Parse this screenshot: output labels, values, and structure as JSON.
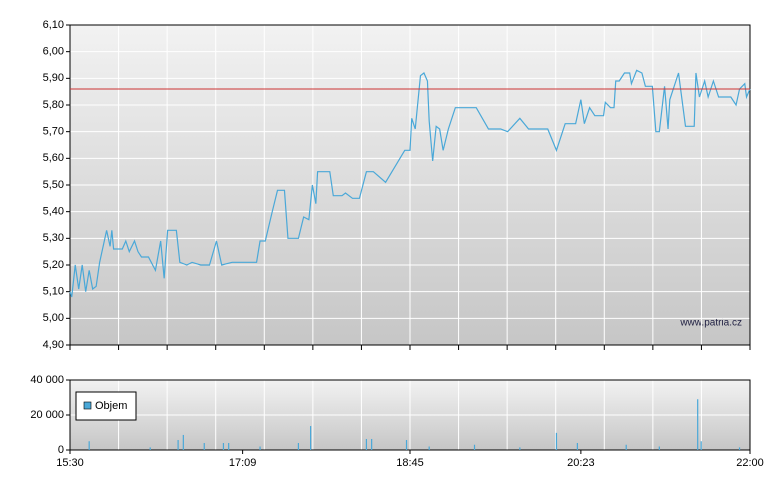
{
  "chart_data": [
    {
      "type": "line",
      "watermark": "www.patria.cz",
      "color": "#4aa8d8",
      "reference_line": 5.86,
      "reference_color": "#cc3333",
      "xlim": [
        "15:30",
        "22:00"
      ],
      "ylim": [
        4.9,
        6.1
      ],
      "yticks": [
        {
          "value": 4.9,
          "label": "4,90"
        },
        {
          "value": 5.0,
          "label": "5,00"
        },
        {
          "value": 5.1,
          "label": "5,10"
        },
        {
          "value": 5.2,
          "label": "5,20"
        },
        {
          "value": 5.3,
          "label": "5,30"
        },
        {
          "value": 5.4,
          "label": "5,40"
        },
        {
          "value": 5.5,
          "label": "5,50"
        },
        {
          "value": 5.6,
          "label": "5,60"
        },
        {
          "value": 5.7,
          "label": "5,70"
        },
        {
          "value": 5.8,
          "label": "5,80"
        },
        {
          "value": 5.9,
          "label": "5,90"
        },
        {
          "value": 6.0,
          "label": "6,00"
        },
        {
          "value": 6.1,
          "label": "6,10"
        }
      ],
      "x": [
        "15:30",
        "15:31",
        "15:33",
        "15:35",
        "15:37",
        "15:39",
        "15:41",
        "15:43",
        "15:45",
        "15:47",
        "15:50",
        "15:51",
        "15:53",
        "15:54",
        "15:55",
        "16:00",
        "16:02",
        "16:04",
        "16:07",
        "16:09",
        "16:11",
        "16:15",
        "16:19",
        "16:22",
        "16:24",
        "16:26",
        "16:31",
        "16:33",
        "16:37",
        "16:40",
        "16:45",
        "16:50",
        "16:54",
        "16:57",
        "17:03",
        "17:12",
        "17:17",
        "17:19",
        "17:22",
        "17:26",
        "17:29",
        "17:33",
        "17:35",
        "17:41",
        "17:44",
        "17:47",
        "17:49",
        "17:51",
        "17:52",
        "17:59",
        "18:01",
        "18:06",
        "18:08",
        "18:12",
        "18:16",
        "18:20",
        "18:24",
        "18:31",
        "18:42",
        "18:45",
        "18:46",
        "18:48",
        "18:51",
        "18:53",
        "18:55",
        "18:56",
        "18:58",
        "19:00",
        "19:02",
        "19:04",
        "19:07",
        "19:11",
        "19:23",
        "19:30",
        "19:37",
        "19:41",
        "19:48",
        "19:53",
        "20:04",
        "20:09",
        "20:14",
        "20:20",
        "20:23",
        "20:25",
        "20:28",
        "20:31",
        "20:36",
        "20:37",
        "20:40",
        "20:42",
        "20:43",
        "20:45",
        "20:48",
        "20:51",
        "20:52",
        "20:55",
        "20:58",
        "21:00",
        "21:04",
        "21:06",
        "21:08",
        "21:11",
        "21:13",
        "21:14",
        "21:19",
        "21:23",
        "21:28",
        "21:29",
        "21:31",
        "21:34",
        "21:36",
        "21:39",
        "21:42",
        "21:49",
        "21:52",
        "21:54",
        "21:57",
        "21:58",
        "22:00"
      ],
      "values": [
        5.1,
        5.08,
        5.2,
        5.11,
        5.2,
        5.1,
        5.18,
        5.11,
        5.12,
        5.21,
        5.3,
        5.33,
        5.27,
        5.33,
        5.26,
        5.26,
        5.29,
        5.25,
        5.29,
        5.25,
        5.23,
        5.23,
        5.18,
        5.29,
        5.15,
        5.33,
        5.33,
        5.21,
        5.2,
        5.21,
        5.2,
        5.2,
        5.29,
        5.2,
        5.21,
        5.21,
        5.21,
        5.29,
        5.29,
        5.4,
        5.48,
        5.48,
        5.3,
        5.3,
        5.38,
        5.37,
        5.5,
        5.43,
        5.55,
        5.55,
        5.46,
        5.46,
        5.47,
        5.45,
        5.45,
        5.55,
        5.55,
        5.51,
        5.63,
        5.63,
        5.75,
        5.71,
        5.91,
        5.92,
        5.89,
        5.74,
        5.59,
        5.72,
        5.71,
        5.63,
        5.71,
        5.79,
        5.79,
        5.71,
        5.71,
        5.7,
        5.75,
        5.71,
        5.71,
        5.63,
        5.73,
        5.73,
        5.82,
        5.73,
        5.79,
        5.76,
        5.76,
        5.81,
        5.79,
        5.79,
        5.89,
        5.89,
        5.92,
        5.92,
        5.88,
        5.93,
        5.92,
        5.87,
        5.87,
        5.7,
        5.7,
        5.87,
        5.71,
        5.82,
        5.92,
        5.72,
        5.72,
        5.92,
        5.83,
        5.89,
        5.83,
        5.89,
        5.83,
        5.83,
        5.8,
        5.86,
        5.88,
        5.83,
        5.86
      ]
    },
    {
      "type": "bar",
      "legend": "upper left",
      "xlim": [
        "15:30",
        "22:00"
      ],
      "ylim": [
        0,
        40000
      ],
      "yticks": [
        0,
        {
          "value": 20000,
          "label": "20 000"
        },
        {
          "value": 40000,
          "label": "40 000"
        }
      ],
      "xticks": [
        "15:30",
        "17:09",
        "18:45",
        "20:23",
        "22:00"
      ],
      "x": [
        "15:41",
        "16:16",
        "16:32",
        "16:35",
        "16:47",
        "16:58",
        "17:01",
        "17:19",
        "17:41",
        "17:48",
        "18:20",
        "18:23",
        "18:43",
        "18:56",
        "19:22",
        "19:48",
        "20:09",
        "20:21",
        "20:49",
        "21:08",
        "21:30",
        "21:32",
        "21:54"
      ],
      "series": [
        {
          "name": "Objem",
          "color": "#4aa8d8",
          "values": [
            5000,
            1500,
            5700,
            8600,
            4000,
            4000,
            4000,
            2000,
            4000,
            13700,
            6300,
            6300,
            5700,
            2000,
            3000,
            1500,
            9800,
            4000,
            3000,
            2000,
            29000,
            5000,
            1500
          ]
        }
      ]
    }
  ]
}
